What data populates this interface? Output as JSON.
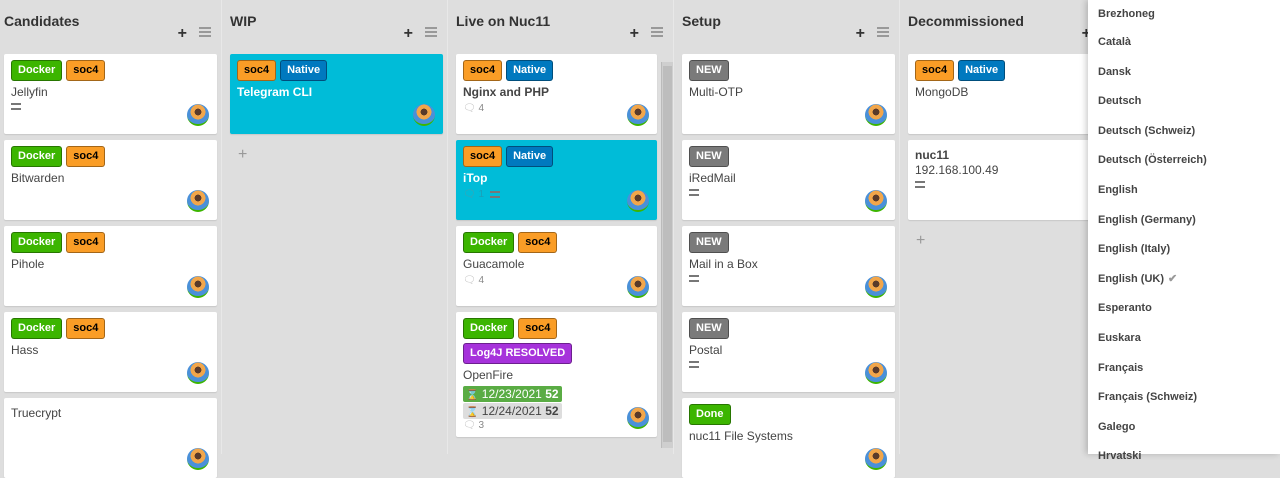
{
  "lists": [
    {
      "title": "Candidates",
      "cards": [
        {
          "labels": [
            {
              "text": "Docker",
              "type": "docker"
            },
            {
              "text": "soc4",
              "type": "soc4"
            }
          ],
          "title": "Jellyfin",
          "desc": true
        },
        {
          "labels": [
            {
              "text": "Docker",
              "type": "docker"
            },
            {
              "text": "soc4",
              "type": "soc4"
            }
          ],
          "title": "Bitwarden"
        },
        {
          "labels": [
            {
              "text": "Docker",
              "type": "docker"
            },
            {
              "text": "soc4",
              "type": "soc4"
            }
          ],
          "title": "Pihole"
        },
        {
          "labels": [
            {
              "text": "Docker",
              "type": "docker"
            },
            {
              "text": "soc4",
              "type": "soc4"
            }
          ],
          "title": "Hass"
        },
        {
          "labels": [],
          "title": "Truecrypt"
        }
      ]
    },
    {
      "title": "WIP",
      "cards": [
        {
          "labels": [
            {
              "text": "soc4",
              "type": "soc4"
            },
            {
              "text": "Native",
              "type": "native"
            }
          ],
          "title": "Telegram CLI",
          "highlight": true
        }
      ],
      "add": "+"
    },
    {
      "title": "Live on Nuc11",
      "scroll": true,
      "cards": [
        {
          "labels": [
            {
              "text": "soc4",
              "type": "soc4"
            },
            {
              "text": "Native",
              "type": "native"
            }
          ],
          "title": "Nginx and PHP",
          "bold": true,
          "comments": "4"
        },
        {
          "labels": [
            {
              "text": "soc4",
              "type": "soc4"
            },
            {
              "text": "Native",
              "type": "native"
            }
          ],
          "title": "iTop",
          "highlight": true,
          "comments": "1",
          "desc": true
        },
        {
          "labels": [
            {
              "text": "Docker",
              "type": "docker"
            },
            {
              "text": "soc4",
              "type": "soc4"
            }
          ],
          "title": "Guacamole",
          "comments": "4"
        },
        {
          "labels": [
            {
              "text": "Docker",
              "type": "docker"
            },
            {
              "text": "soc4",
              "type": "soc4"
            },
            {
              "text": "Log4J RESOLVED",
              "type": "log4j"
            }
          ],
          "title": "OpenFire",
          "dates": [
            {
              "date": "12/23/2021",
              "num": "52",
              "style": "green"
            },
            {
              "date": "12/24/2021",
              "num": "52",
              "style": "gray"
            }
          ],
          "comments": "3"
        }
      ]
    },
    {
      "title": "Setup",
      "cards": [
        {
          "labels": [
            {
              "text": "NEW",
              "type": "new"
            }
          ],
          "title": "Multi-OTP"
        },
        {
          "labels": [
            {
              "text": "NEW",
              "type": "new"
            }
          ],
          "title": "iRedMail",
          "desc": true
        },
        {
          "labels": [
            {
              "text": "NEW",
              "type": "new"
            }
          ],
          "title": "Mail in a Box",
          "desc": true
        },
        {
          "labels": [
            {
              "text": "NEW",
              "type": "new"
            }
          ],
          "title": "Postal",
          "desc": true
        },
        {
          "labels": [
            {
              "text": "Done",
              "type": "done"
            }
          ],
          "title": "nuc11 File Systems"
        }
      ]
    },
    {
      "title": "Decommissioned",
      "cards": [
        {
          "labels": [
            {
              "text": "soc4",
              "type": "soc4"
            },
            {
              "text": "Native",
              "type": "native"
            }
          ],
          "title": "MongoDB"
        },
        {
          "labels": [],
          "title": "nuc11",
          "subtitle": "192.168.100.49",
          "bold": true,
          "desc": true
        }
      ],
      "add": "+"
    }
  ],
  "languages": [
    "Brezhoneg",
    "Català",
    "Dansk",
    "Deutsch",
    "Deutsch (Schweiz)",
    "Deutsch (Österreich)",
    "English",
    "English (Germany)",
    "English (Italy)",
    "English (UK)",
    "Esperanto",
    "Euskara",
    "Français",
    "Français (Schweiz)",
    "Galego",
    "Hrvatski"
  ],
  "selected_language": "English (UK)",
  "icons": {
    "add": "+",
    "check": "✔",
    "comment": "💬",
    "hourglass": "⌛"
  }
}
